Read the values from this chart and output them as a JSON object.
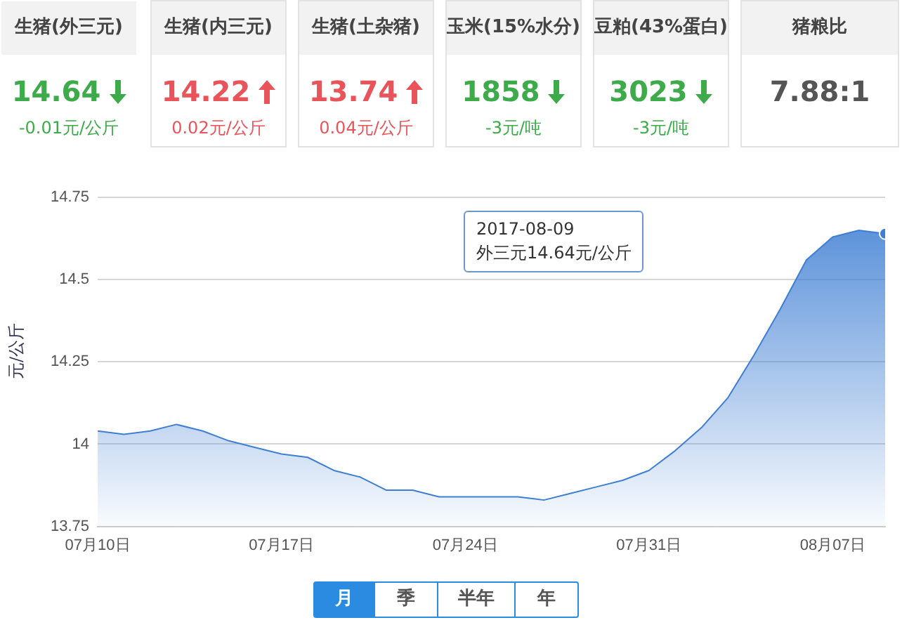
{
  "chart_data": [
    {
      "type": "other",
      "annotations": [
        "生猪(外三元)",
        "生猪(内三元)",
        "生猪(土杂猪)",
        "玉米(15%水分)",
        "豆粕(43%蛋白)",
        "猪粮比",
        "14.64",
        "14.22",
        "13.74",
        "1858",
        "3023",
        "7.88:1",
        "-0.01元/公斤",
        "0.02元/公斤",
        "0.04元/公斤",
        "-3元/吨",
        "-3元/吨"
      ]
    },
    {
      "type": "area",
      "ylabel": "元/公斤",
      "color": "#3f7fd3",
      "x": [
        "2017-07-10",
        "2017-07-11",
        "2017-07-12",
        "2017-07-13",
        "2017-07-14",
        "2017-07-15",
        "2017-07-16",
        "2017-07-17",
        "2017-07-18",
        "2017-07-19",
        "2017-07-20",
        "2017-07-21",
        "2017-07-22",
        "2017-07-23",
        "2017-07-24",
        "2017-07-25",
        "2017-07-26",
        "2017-07-27",
        "2017-07-28",
        "2017-07-29",
        "2017-07-30",
        "2017-07-31",
        "2017-08-01",
        "2017-08-02",
        "2017-08-03",
        "2017-08-04",
        "2017-08-05",
        "2017-08-06",
        "2017-08-07",
        "2017-08-08",
        "2017-08-09"
      ],
      "values": [
        14.04,
        14.03,
        14.04,
        14.06,
        14.04,
        14.01,
        13.99,
        13.97,
        13.96,
        13.92,
        13.9,
        13.86,
        13.86,
        13.84,
        13.84,
        13.84,
        13.84,
        13.83,
        13.85,
        13.87,
        13.89,
        13.92,
        13.98,
        14.05,
        14.14,
        14.27,
        14.41,
        14.56,
        14.63,
        14.65,
        14.64
      ],
      "xlim": [
        "2017-07-10",
        "2017-08-09"
      ],
      "xticks": [
        {
          "value": "2017-07-10",
          "label": "07月10日"
        },
        {
          "value": "2017-07-17",
          "label": "07月17日"
        },
        {
          "value": "2017-07-24",
          "label": "07月24日"
        },
        {
          "value": "2017-07-31",
          "label": "07月31日"
        },
        {
          "value": "2017-08-07",
          "label": "08月07日"
        }
      ],
      "ylim": [
        13.75,
        14.75
      ],
      "yticks": [
        13.75,
        14,
        14.25,
        14.5,
        14.75
      ],
      "grid": "y",
      "legend": false,
      "annotations": [
        "2017-08-09\n外三元14.64元/公斤",
        "月",
        "季",
        "半年",
        "年"
      ]
    }
  ]
}
